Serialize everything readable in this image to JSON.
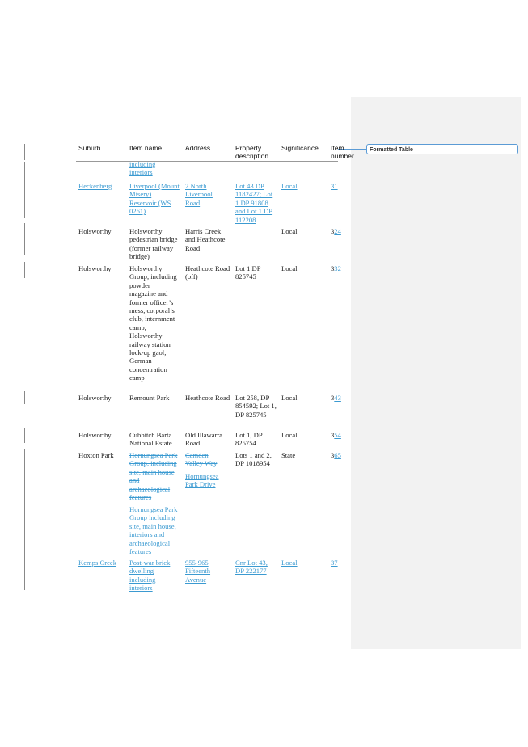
{
  "comment": {
    "label": "Formatted Table"
  },
  "table": {
    "headers": {
      "suburb": "Suburb",
      "item_name": "Item name",
      "address": "Address",
      "property": "Property description",
      "significance": "Significance",
      "item_number": "Item number"
    },
    "top_fragment": "including interiors",
    "rows": [
      {
        "suburb": "Heckenberg",
        "item_name": "Liverpool (Mount Misery) Reservoir (WS 0261)",
        "address": "2 North Liverpool Road",
        "property": "Lot 43 DP 1182427; Lot 1 DP 91808 and Lot 1 DP 112208",
        "significance": "Local",
        "item_number": "31"
      },
      {
        "suburb": "Holsworthy",
        "item_name": "Holsworthy pedestrian bridge (former railway bridge)",
        "address": "Harris Creek and Heathcote Road",
        "property": "",
        "significance": "Local",
        "item_number_old": "3",
        "item_number_new": "24"
      },
      {
        "suburb": "Holsworthy",
        "item_name": "Holsworthy Group, including powder magazine and former officer’s mess, corporal’s club, internment camp, Holsworthy railway station lock-up gaol, German concentration camp",
        "address": "Heathcote Road (off)",
        "property": "Lot 1 DP 825745",
        "significance": "Local",
        "item_number_old": "3",
        "item_number_new": "32"
      },
      {
        "suburb": "Holsworthy",
        "item_name": "Remount Park",
        "address": "Heathcote Road",
        "property": "Lot 258, DP 854592; Lot 1, DP 825745",
        "significance": "Local",
        "item_number_old": "3",
        "item_number_new": "43"
      },
      {
        "suburb": "Holsworthy",
        "item_name": "Cubbitch Barta National Estate",
        "address": "Old Illawarra Road",
        "property": "Lot 1, DP 825754",
        "significance": "Local",
        "item_number_old": "3",
        "item_number_new": "54"
      },
      {
        "suburb": "Hoxton Park",
        "item_name_deleted": "Hornungsea Park Group, including site, main house and archaeological features",
        "item_name_inserted": "Hornungsea Park Group including site, main house, interiors and archaeological features",
        "address_deleted": "Camden Valley Way",
        "address_inserted": "Hornungsea Park Drive",
        "property": "Lots 1 and 2, DP 1018954",
        "significance": "State",
        "item_number_old": "3",
        "item_number_new": "65"
      },
      {
        "suburb": "Kemps Creek",
        "item_name": "Post-war brick dwelling including interiors",
        "address": "955-965 Fifteenth Avenue",
        "property": "Cnr Lot 43, DP 222177",
        "significance": "Local",
        "item_number": "37"
      }
    ]
  }
}
